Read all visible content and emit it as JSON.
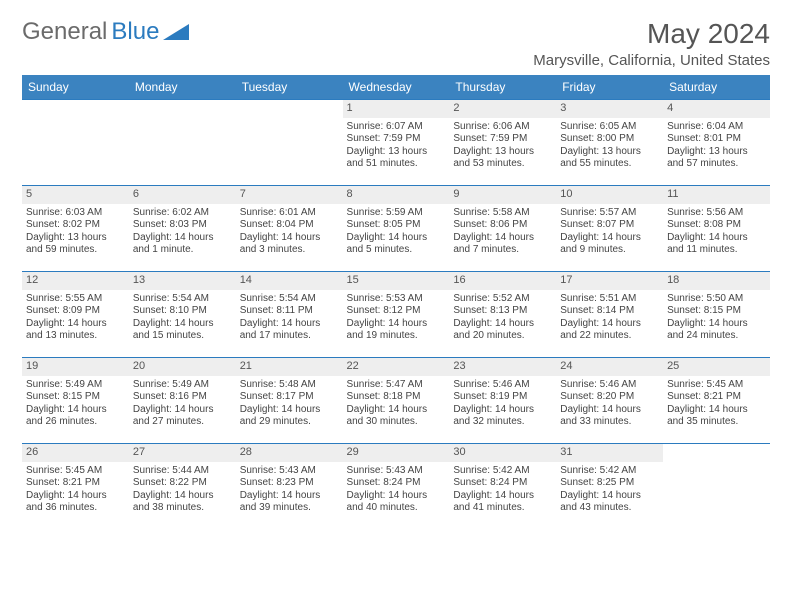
{
  "brand": {
    "part1": "General",
    "part2": "Blue"
  },
  "title": "May 2024",
  "location": "Marysville, California, United States",
  "header_bg": "#3b83c0",
  "border_color": "#2b7bbf",
  "daynum_bg": "#eeeeee",
  "day_headers": [
    "Sunday",
    "Monday",
    "Tuesday",
    "Wednesday",
    "Thursday",
    "Friday",
    "Saturday"
  ],
  "weeks": [
    [
      null,
      null,
      null,
      {
        "n": "1",
        "sr": "6:07 AM",
        "ss": "7:59 PM",
        "dl": "13 hours and 51 minutes."
      },
      {
        "n": "2",
        "sr": "6:06 AM",
        "ss": "7:59 PM",
        "dl": "13 hours and 53 minutes."
      },
      {
        "n": "3",
        "sr": "6:05 AM",
        "ss": "8:00 PM",
        "dl": "13 hours and 55 minutes."
      },
      {
        "n": "4",
        "sr": "6:04 AM",
        "ss": "8:01 PM",
        "dl": "13 hours and 57 minutes."
      }
    ],
    [
      {
        "n": "5",
        "sr": "6:03 AM",
        "ss": "8:02 PM",
        "dl": "13 hours and 59 minutes."
      },
      {
        "n": "6",
        "sr": "6:02 AM",
        "ss": "8:03 PM",
        "dl": "14 hours and 1 minute."
      },
      {
        "n": "7",
        "sr": "6:01 AM",
        "ss": "8:04 PM",
        "dl": "14 hours and 3 minutes."
      },
      {
        "n": "8",
        "sr": "5:59 AM",
        "ss": "8:05 PM",
        "dl": "14 hours and 5 minutes."
      },
      {
        "n": "9",
        "sr": "5:58 AM",
        "ss": "8:06 PM",
        "dl": "14 hours and 7 minutes."
      },
      {
        "n": "10",
        "sr": "5:57 AM",
        "ss": "8:07 PM",
        "dl": "14 hours and 9 minutes."
      },
      {
        "n": "11",
        "sr": "5:56 AM",
        "ss": "8:08 PM",
        "dl": "14 hours and 11 minutes."
      }
    ],
    [
      {
        "n": "12",
        "sr": "5:55 AM",
        "ss": "8:09 PM",
        "dl": "14 hours and 13 minutes."
      },
      {
        "n": "13",
        "sr": "5:54 AM",
        "ss": "8:10 PM",
        "dl": "14 hours and 15 minutes."
      },
      {
        "n": "14",
        "sr": "5:54 AM",
        "ss": "8:11 PM",
        "dl": "14 hours and 17 minutes."
      },
      {
        "n": "15",
        "sr": "5:53 AM",
        "ss": "8:12 PM",
        "dl": "14 hours and 19 minutes."
      },
      {
        "n": "16",
        "sr": "5:52 AM",
        "ss": "8:13 PM",
        "dl": "14 hours and 20 minutes."
      },
      {
        "n": "17",
        "sr": "5:51 AM",
        "ss": "8:14 PM",
        "dl": "14 hours and 22 minutes."
      },
      {
        "n": "18",
        "sr": "5:50 AM",
        "ss": "8:15 PM",
        "dl": "14 hours and 24 minutes."
      }
    ],
    [
      {
        "n": "19",
        "sr": "5:49 AM",
        "ss": "8:15 PM",
        "dl": "14 hours and 26 minutes."
      },
      {
        "n": "20",
        "sr": "5:49 AM",
        "ss": "8:16 PM",
        "dl": "14 hours and 27 minutes."
      },
      {
        "n": "21",
        "sr": "5:48 AM",
        "ss": "8:17 PM",
        "dl": "14 hours and 29 minutes."
      },
      {
        "n": "22",
        "sr": "5:47 AM",
        "ss": "8:18 PM",
        "dl": "14 hours and 30 minutes."
      },
      {
        "n": "23",
        "sr": "5:46 AM",
        "ss": "8:19 PM",
        "dl": "14 hours and 32 minutes."
      },
      {
        "n": "24",
        "sr": "5:46 AM",
        "ss": "8:20 PM",
        "dl": "14 hours and 33 minutes."
      },
      {
        "n": "25",
        "sr": "5:45 AM",
        "ss": "8:21 PM",
        "dl": "14 hours and 35 minutes."
      }
    ],
    [
      {
        "n": "26",
        "sr": "5:45 AM",
        "ss": "8:21 PM",
        "dl": "14 hours and 36 minutes."
      },
      {
        "n": "27",
        "sr": "5:44 AM",
        "ss": "8:22 PM",
        "dl": "14 hours and 38 minutes."
      },
      {
        "n": "28",
        "sr": "5:43 AM",
        "ss": "8:23 PM",
        "dl": "14 hours and 39 minutes."
      },
      {
        "n": "29",
        "sr": "5:43 AM",
        "ss": "8:24 PM",
        "dl": "14 hours and 40 minutes."
      },
      {
        "n": "30",
        "sr": "5:42 AM",
        "ss": "8:24 PM",
        "dl": "14 hours and 41 minutes."
      },
      {
        "n": "31",
        "sr": "5:42 AM",
        "ss": "8:25 PM",
        "dl": "14 hours and 43 minutes."
      },
      null
    ]
  ],
  "labels": {
    "sunrise": "Sunrise: ",
    "sunset": "Sunset: ",
    "daylight": "Daylight: "
  }
}
